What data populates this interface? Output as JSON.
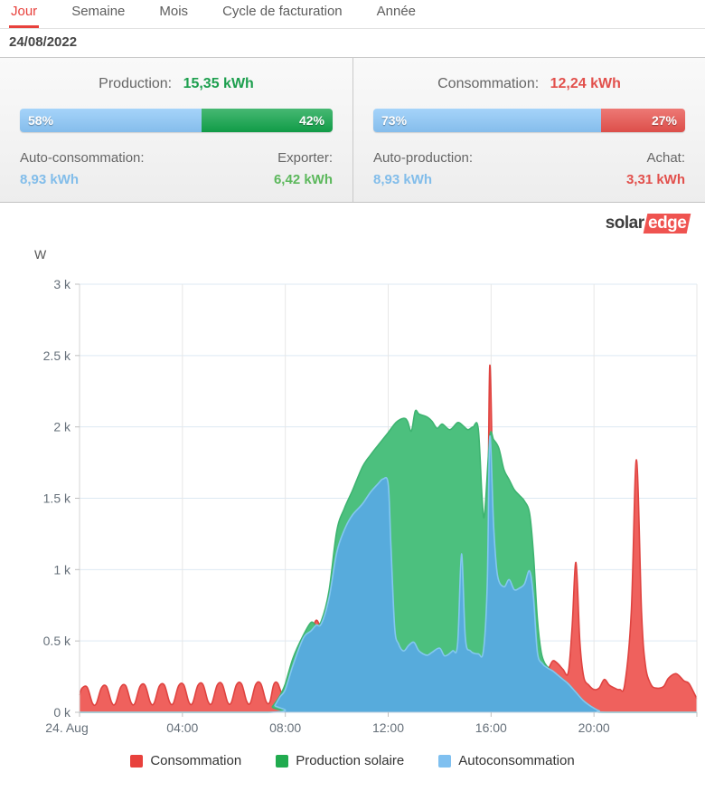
{
  "tabs": {
    "items": [
      {
        "label": "Jour",
        "active": true
      },
      {
        "label": "Semaine",
        "active": false
      },
      {
        "label": "Mois",
        "active": false
      },
      {
        "label": "Cycle de facturation",
        "active": false
      },
      {
        "label": "Année",
        "active": false
      }
    ]
  },
  "date_bar": {
    "date": "24/08/2022"
  },
  "production_panel": {
    "title": "Production:",
    "value": "15,35 kWh",
    "bar": {
      "left_pct": 58,
      "right_pct": 42,
      "left_label": "58%",
      "right_label": "42%"
    },
    "left_stat": {
      "label": "Auto-consommation:",
      "value": "8,93 kWh"
    },
    "right_stat": {
      "label": "Exporter:",
      "value": "6,42 kWh"
    }
  },
  "consumption_panel": {
    "title": "Consommation:",
    "value": "12,24 kWh",
    "bar": {
      "left_pct": 73,
      "right_pct": 27,
      "left_label": "73%",
      "right_label": "27%"
    },
    "left_stat": {
      "label": "Auto-production:",
      "value": "8,93 kWh"
    },
    "right_stat": {
      "label": "Achat:",
      "value": "3,31 kWh"
    }
  },
  "logo": {
    "part1": "solar",
    "part2": "edge"
  },
  "colors": {
    "accent_red": "#e8413c",
    "bar_blue": "#8cc7f8",
    "bar_green": "#12a44b",
    "bar_red": "#e8534e",
    "value_green": "#1d9f4e",
    "value_light_blue": "#82bdea",
    "value_export_green": "#5cb85c",
    "value_red": "#e2504c",
    "grid_h": "#dde9f3",
    "grid_v": "#e7e7e7",
    "axis_bottom": "#c7d3e0",
    "axis_left": "#d4d4d4",
    "tick_label": "#66707a"
  },
  "chart_data": {
    "type": "area",
    "title": "",
    "ylabel": "W",
    "xlabel": "",
    "ylim": [
      0,
      3000
    ],
    "xlim": [
      0,
      24
    ],
    "grid": true,
    "legend_position": "bottom",
    "y_ticks": [
      {
        "v": 0,
        "label": "0 k"
      },
      {
        "v": 500,
        "label": "0.5 k"
      },
      {
        "v": 1000,
        "label": "1 k"
      },
      {
        "v": 1500,
        "label": "1.5 k"
      },
      {
        "v": 2000,
        "label": "2 k"
      },
      {
        "v": 2500,
        "label": "2.5 k"
      },
      {
        "v": 3000,
        "label": "3 k"
      }
    ],
    "x_ticks": [
      {
        "t": 0,
        "label": "24. Aug"
      },
      {
        "t": 4,
        "label": "04:00"
      },
      {
        "t": 8,
        "label": "08:00"
      },
      {
        "t": 12,
        "label": "12:00"
      },
      {
        "t": 16,
        "label": "16:00"
      },
      {
        "t": 20,
        "label": "20:00"
      },
      {
        "t": 24,
        "label": ""
      }
    ],
    "legend": [
      {
        "label": "Consommation",
        "color": "#e8413c"
      },
      {
        "label": "Production solaire",
        "color": "#21ab4f"
      },
      {
        "label": "Autoconsommation",
        "color": "#7fc0f0"
      }
    ],
    "series": [
      {
        "id": "consommation",
        "name": "Consommation",
        "line": "#df4340",
        "fill": "#ef615d",
        "points": [
          [
            0,
            120
          ],
          [
            0.1,
            170
          ],
          [
            0.3,
            175
          ],
          [
            0.5,
            65
          ],
          [
            0.65,
            60
          ],
          [
            0.85,
            170
          ],
          [
            1.05,
            180
          ],
          [
            1.25,
            68
          ],
          [
            1.4,
            62
          ],
          [
            1.6,
            175
          ],
          [
            1.8,
            185
          ],
          [
            2,
            70
          ],
          [
            2.15,
            63
          ],
          [
            2.35,
            180
          ],
          [
            2.55,
            188
          ],
          [
            2.75,
            70
          ],
          [
            2.9,
            64
          ],
          [
            3.1,
            182
          ],
          [
            3.3,
            190
          ],
          [
            3.5,
            72
          ],
          [
            3.65,
            65
          ],
          [
            3.85,
            185
          ],
          [
            4.05,
            192
          ],
          [
            4.25,
            72
          ],
          [
            4.4,
            66
          ],
          [
            4.6,
            188
          ],
          [
            4.8,
            194
          ],
          [
            5,
            74
          ],
          [
            5.15,
            66
          ],
          [
            5.35,
            190
          ],
          [
            5.55,
            196
          ],
          [
            5.75,
            74
          ],
          [
            5.9,
            68
          ],
          [
            6.1,
            192
          ],
          [
            6.3,
            198
          ],
          [
            6.5,
            76
          ],
          [
            6.65,
            68
          ],
          [
            6.85,
            195
          ],
          [
            7.05,
            200
          ],
          [
            7.25,
            78
          ],
          [
            7.4,
            72
          ],
          [
            7.55,
            195
          ],
          [
            7.7,
            205
          ],
          [
            7.85,
            140
          ],
          [
            8,
            165
          ],
          [
            8.3,
            330
          ],
          [
            8.7,
            520
          ],
          [
            9,
            570
          ],
          [
            9.2,
            645
          ],
          [
            9.4,
            620
          ],
          [
            9.7,
            800
          ],
          [
            10,
            1120
          ],
          [
            10.3,
            1280
          ],
          [
            10.6,
            1380
          ],
          [
            11,
            1460
          ],
          [
            11.3,
            1540
          ],
          [
            11.6,
            1600
          ],
          [
            11.8,
            1635
          ],
          [
            12,
            1600
          ],
          [
            12.1,
            1200
          ],
          [
            12.25,
            600
          ],
          [
            12.4,
            480
          ],
          [
            12.6,
            430
          ],
          [
            12.8,
            470
          ],
          [
            13,
            490
          ],
          [
            13.2,
            430
          ],
          [
            13.5,
            400
          ],
          [
            13.7,
            420
          ],
          [
            14,
            450
          ],
          [
            14.2,
            395
          ],
          [
            14.5,
            430
          ],
          [
            14.7,
            480
          ],
          [
            14.85,
            1110
          ],
          [
            15,
            520
          ],
          [
            15.2,
            430
          ],
          [
            15.5,
            410
          ],
          [
            15.7,
            430
          ],
          [
            15.85,
            900
          ],
          [
            15.95,
            2430
          ],
          [
            16.1,
            1300
          ],
          [
            16.25,
            960
          ],
          [
            16.5,
            880
          ],
          [
            16.7,
            930
          ],
          [
            16.9,
            860
          ],
          [
            17.1,
            870
          ],
          [
            17.3,
            900
          ],
          [
            17.5,
            990
          ],
          [
            17.65,
            800
          ],
          [
            17.8,
            420
          ],
          [
            18,
            320
          ],
          [
            18.2,
            300
          ],
          [
            18.4,
            360
          ],
          [
            18.6,
            340
          ],
          [
            18.8,
            300
          ],
          [
            19,
            280
          ],
          [
            19.15,
            600
          ],
          [
            19.3,
            1050
          ],
          [
            19.45,
            500
          ],
          [
            19.6,
            250
          ],
          [
            19.8,
            190
          ],
          [
            20,
            160
          ],
          [
            20.2,
            170
          ],
          [
            20.4,
            230
          ],
          [
            20.6,
            190
          ],
          [
            20.8,
            170
          ],
          [
            21,
            160
          ],
          [
            21.2,
            200
          ],
          [
            21.45,
            700
          ],
          [
            21.65,
            1770
          ],
          [
            21.85,
            700
          ],
          [
            22,
            330
          ],
          [
            22.2,
            200
          ],
          [
            22.4,
            170
          ],
          [
            22.7,
            180
          ],
          [
            22.9,
            240
          ],
          [
            23.2,
            270
          ],
          [
            23.5,
            220
          ],
          [
            23.7,
            200
          ],
          [
            24,
            95
          ]
        ]
      },
      {
        "id": "production",
        "name": "Production solaire",
        "line": "#3eb471",
        "fill": "#4cc07e",
        "points": [
          [
            0,
            0
          ],
          [
            7.3,
            0
          ],
          [
            7.5,
            40
          ],
          [
            7.8,
            120
          ],
          [
            8,
            200
          ],
          [
            8.3,
            380
          ],
          [
            8.7,
            540
          ],
          [
            9,
            630
          ],
          [
            9.2,
            610
          ],
          [
            9.4,
            640
          ],
          [
            9.7,
            850
          ],
          [
            10,
            1270
          ],
          [
            10.3,
            1430
          ],
          [
            10.6,
            1550
          ],
          [
            11,
            1720
          ],
          [
            11.3,
            1800
          ],
          [
            11.6,
            1870
          ],
          [
            12,
            1960
          ],
          [
            12.3,
            2030
          ],
          [
            12.6,
            2060
          ],
          [
            12.75,
            2040
          ],
          [
            12.9,
            1970
          ],
          [
            13.05,
            2110
          ],
          [
            13.2,
            2090
          ],
          [
            13.5,
            2070
          ],
          [
            13.7,
            2040
          ],
          [
            13.9,
            1990
          ],
          [
            14.1,
            2020
          ],
          [
            14.4,
            1980
          ],
          [
            14.7,
            2030
          ],
          [
            14.9,
            2010
          ],
          [
            15.1,
            1980
          ],
          [
            15.3,
            2000
          ],
          [
            15.5,
            1990
          ],
          [
            15.65,
            1500
          ],
          [
            15.75,
            1390
          ],
          [
            15.95,
            1930
          ],
          [
            16.1,
            1910
          ],
          [
            16.3,
            1850
          ],
          [
            16.5,
            1700
          ],
          [
            16.7,
            1630
          ],
          [
            16.9,
            1560
          ],
          [
            17.1,
            1520
          ],
          [
            17.3,
            1480
          ],
          [
            17.5,
            1390
          ],
          [
            17.65,
            1100
          ],
          [
            17.8,
            650
          ],
          [
            17.95,
            420
          ],
          [
            18.1,
            340
          ],
          [
            18.3,
            300
          ],
          [
            18.6,
            260
          ],
          [
            19,
            200
          ],
          [
            19.3,
            140
          ],
          [
            19.6,
            80
          ],
          [
            19.9,
            40
          ],
          [
            20.2,
            10
          ],
          [
            20.45,
            0
          ],
          [
            24,
            0
          ]
        ]
      },
      {
        "id": "autoconsommation",
        "name": "Autoconsommation",
        "line": "#83c7f0",
        "fill": "#57abdc",
        "points": [
          [
            0,
            0
          ],
          [
            7.4,
            0
          ],
          [
            7.6,
            50
          ],
          [
            7.8,
            110
          ],
          [
            8,
            160
          ],
          [
            8.3,
            330
          ],
          [
            8.7,
            520
          ],
          [
            9,
            570
          ],
          [
            9.2,
            610
          ],
          [
            9.4,
            620
          ],
          [
            9.7,
            800
          ],
          [
            10,
            1120
          ],
          [
            10.3,
            1280
          ],
          [
            10.6,
            1380
          ],
          [
            11,
            1460
          ],
          [
            11.3,
            1540
          ],
          [
            11.6,
            1600
          ],
          [
            11.8,
            1635
          ],
          [
            12,
            1600
          ],
          [
            12.1,
            1200
          ],
          [
            12.25,
            600
          ],
          [
            12.4,
            480
          ],
          [
            12.6,
            430
          ],
          [
            12.8,
            470
          ],
          [
            13,
            490
          ],
          [
            13.2,
            430
          ],
          [
            13.5,
            400
          ],
          [
            13.7,
            420
          ],
          [
            14,
            450
          ],
          [
            14.2,
            395
          ],
          [
            14.5,
            430
          ],
          [
            14.7,
            480
          ],
          [
            14.85,
            1110
          ],
          [
            15,
            520
          ],
          [
            15.2,
            430
          ],
          [
            15.5,
            410
          ],
          [
            15.7,
            430
          ],
          [
            15.85,
            900
          ],
          [
            15.95,
            1930
          ],
          [
            16.1,
            1300
          ],
          [
            16.25,
            960
          ],
          [
            16.5,
            880
          ],
          [
            16.7,
            930
          ],
          [
            16.9,
            860
          ],
          [
            17.1,
            870
          ],
          [
            17.3,
            900
          ],
          [
            17.5,
            990
          ],
          [
            17.65,
            800
          ],
          [
            17.8,
            420
          ],
          [
            18,
            340
          ],
          [
            18.2,
            310
          ],
          [
            18.4,
            290
          ],
          [
            18.6,
            260
          ],
          [
            18.8,
            230
          ],
          [
            19,
            200
          ],
          [
            19.3,
            140
          ],
          [
            19.6,
            80
          ],
          [
            19.9,
            40
          ],
          [
            20.2,
            10
          ],
          [
            20.45,
            0
          ],
          [
            24,
            0
          ]
        ]
      }
    ]
  }
}
